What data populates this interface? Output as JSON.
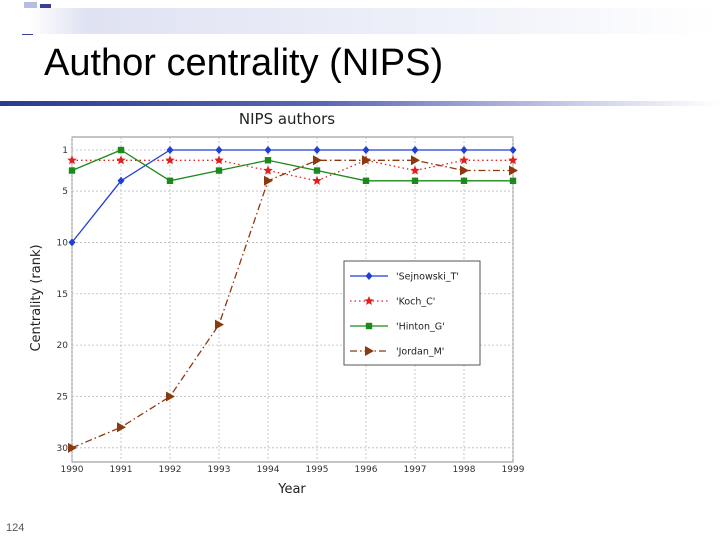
{
  "slide": {
    "title": "Author centrality (NIPS)",
    "page_number": "124"
  },
  "colors": {
    "accent_bar": "#2b3a8c",
    "square_dark": "#3a3f8f",
    "square_light": "#b7bce0"
  },
  "chart_data": {
    "type": "line",
    "title": "NIPS authors",
    "xlabel": "Year",
    "ylabel": "Centrality (rank)",
    "x": [
      1990,
      1991,
      1992,
      1993,
      1994,
      1995,
      1996,
      1997,
      1998,
      1999
    ],
    "xlim": [
      1990,
      1999
    ],
    "ylim": [
      30,
      0
    ],
    "y_inverted": true,
    "yticks": [
      1,
      5,
      10,
      15,
      20,
      25,
      30
    ],
    "grid": true,
    "legend_position": "center-right",
    "series": [
      {
        "name": "'Sejnowski_T'",
        "color": "#1f3fd6",
        "marker": "diamond",
        "line": "solid",
        "values": [
          10,
          4,
          1,
          1,
          1,
          1,
          1,
          1,
          1,
          1
        ]
      },
      {
        "name": "'Koch_C'",
        "color": "#e02020",
        "marker": "star",
        "line": "dotted",
        "values": [
          2,
          2,
          2,
          2,
          3,
          4,
          2,
          3,
          2,
          2
        ]
      },
      {
        "name": "'Hinton_G'",
        "color": "#1a8a1a",
        "marker": "square",
        "line": "solid",
        "values": [
          3,
          1,
          4,
          3,
          2,
          3,
          4,
          4,
          4,
          4
        ]
      },
      {
        "name": "'Jordan_M'",
        "color": "#8b3a10",
        "marker": "triangle-right",
        "line": "dashdot",
        "values": [
          30,
          28,
          25,
          18,
          4,
          2,
          2,
          2,
          3,
          3
        ]
      }
    ]
  }
}
